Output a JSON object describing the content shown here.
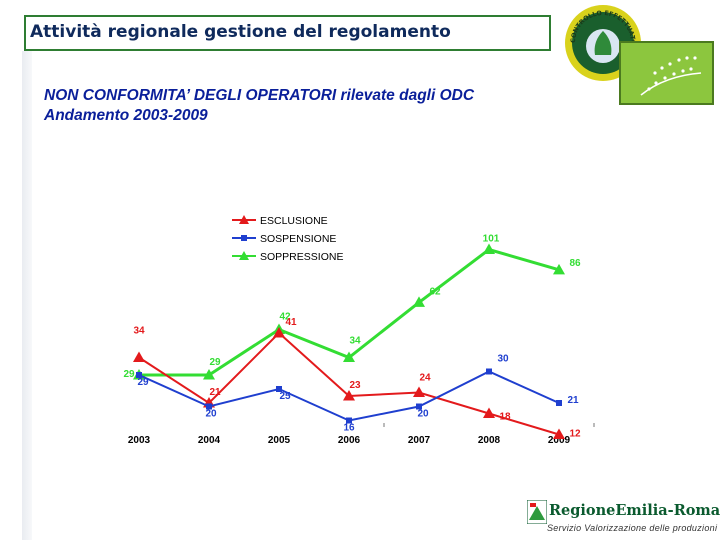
{
  "header": {
    "title": "Attività regionale gestione del regolamento"
  },
  "subtitle": {
    "line1": "NON CONFORMITA’ DEGLI OPERATORI rilevate dagli ODC",
    "line2": "Andamento 2003-2009"
  },
  "logos": {
    "seal_text": "CONTROLLO EFFETTUATO",
    "seal_icon": "organic-control-seal-icon",
    "eu_leaf_icon": "eu-organic-leaf-icon",
    "region_name": "RegioneEmilia-Romagna",
    "region_service": "Servizio Valorizzazione delle produzioni"
  },
  "colors": {
    "header_border": "#2e7d32",
    "header_text": "#0f2a5c",
    "subtitle_text": "#0a1f9a",
    "esclusione": "#e31a1c",
    "sospensione": "#1f3fcf",
    "soppressione": "#33dd33"
  },
  "chart_data": {
    "type": "line",
    "categories": [
      "2003",
      "2004",
      "2005",
      "2006",
      "2007",
      "2008",
      "2009"
    ],
    "legend_placement": "top-left",
    "grid": false,
    "series": [
      {
        "name": "ESCLUSIONE",
        "marker": "triangle",
        "color": "#e31a1c",
        "values": [
          34,
          21,
          41,
          23,
          24,
          18,
          12
        ]
      },
      {
        "name": "SOSPENSIONE",
        "marker": "square",
        "color": "#1f3fcf",
        "values": [
          29,
          20,
          25,
          16,
          20,
          30,
          21
        ]
      },
      {
        "name": "SOPPRESSIONE",
        "marker": "triangle",
        "color": "#33dd33",
        "values": [
          29,
          29,
          42,
          34,
          62,
          101,
          86
        ]
      }
    ]
  }
}
